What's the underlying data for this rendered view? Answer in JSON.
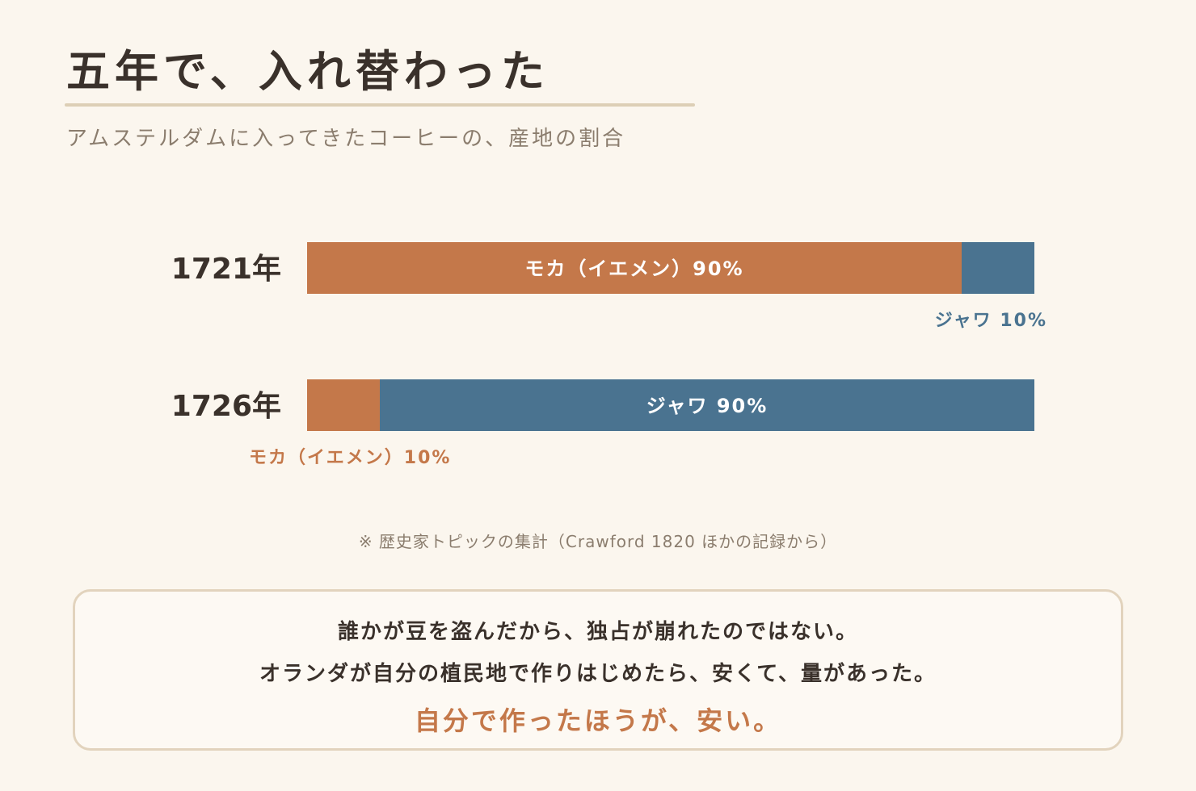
{
  "header": {
    "title": "五年で、入れ替わった",
    "subtitle": "アムステルダムに入ってきたコーヒーの、産地の割合"
  },
  "colors": {
    "mocha": "#c4784a",
    "java": "#4a7390",
    "background": "#fbf6ee",
    "text": "#3a312b",
    "muted": "#8b7d6e"
  },
  "chart_data": {
    "type": "bar",
    "orientation": "horizontal",
    "stacked": true,
    "categories": [
      "1721年",
      "1726年"
    ],
    "series": [
      {
        "name": "モカ（イエメン）",
        "values": [
          90,
          10
        ]
      },
      {
        "name": "ジャワ",
        "values": [
          10,
          90
        ]
      }
    ],
    "unit": "%",
    "xlim": [
      0,
      100
    ],
    "grid": false,
    "legend": "none",
    "data_labels": [
      [
        "モカ（イエメン）90%",
        "ジャワ 10%"
      ],
      [
        "モカ（イエメン）10%",
        "ジャワ 90%"
      ]
    ]
  },
  "source_note": "※ 歴史家トピックの集計（Crawford 1820 ほかの記録から）",
  "callout": {
    "line1": "誰かが豆を盗んだから、独占が崩れたのではない。",
    "line2": "オランダが自分の植民地で作りはじめたら、安くて、量があった。",
    "emphasis": "自分で作ったほうが、安い。"
  }
}
